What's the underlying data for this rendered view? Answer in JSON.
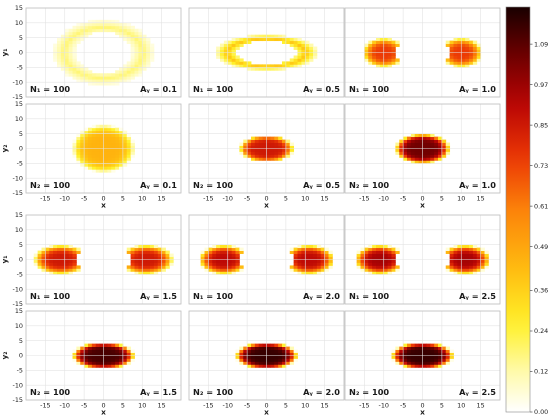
{
  "chart_data": {
    "type": "heatmap",
    "layout": {
      "rows": 4,
      "cols": 3
    },
    "xlabel": "x",
    "ylabels": [
      "y₁",
      "y₂",
      "y₁",
      "y₂"
    ],
    "xlim": [
      -20,
      20
    ],
    "ylim": [
      -15,
      15
    ],
    "x_ticks": [
      -15,
      -10,
      -5,
      0,
      5,
      10,
      15
    ],
    "y_ticks": [
      -15,
      -10,
      -5,
      0,
      5,
      10,
      15
    ],
    "grid": true,
    "colormap": "hot_r",
    "colorbar": {
      "range": [
        0.0,
        1.2
      ],
      "ticks": [
        "0.00",
        "0.12",
        "0.24",
        "0.36",
        "0.49",
        "0.61",
        "0.73",
        "0.85",
        "0.97",
        "1.09"
      ]
    },
    "panels": [
      {
        "row": 0,
        "col": 0,
        "N": "N₁ = 100",
        "A": "Aᵧ = 0.1",
        "shape": "ring",
        "cx": 0,
        "cy": 0,
        "rx": 13,
        "ry": 11,
        "width": 4.5,
        "peak": 0.18,
        "hole_rx": 7,
        "hole_ry": 7
      },
      {
        "row": 0,
        "col": 1,
        "N": "N₁ = 100",
        "A": "Aᵧ = 0.5",
        "shape": "ring",
        "cx": 0,
        "cy": 0,
        "rx": 13,
        "ry": 6,
        "width": 4.5,
        "peak": 0.4,
        "hole_rx": 8,
        "hole_ry": 4
      },
      {
        "row": 0,
        "col": 2,
        "N": "N₁ = 100",
        "A": "Aᵧ = 1.0",
        "shape": "lobes",
        "sep": 10,
        "rx": 5.5,
        "ry": 5,
        "peak": 0.75,
        "hole": 7
      },
      {
        "row": 1,
        "col": 0,
        "N": "N₂ = 100",
        "A": "Aᵧ = 0.1",
        "shape": "blob",
        "cx": 0,
        "cy": 0,
        "rx": 8,
        "ry": 8,
        "peak": 0.45
      },
      {
        "row": 1,
        "col": 1,
        "N": "N₂ = 100",
        "A": "Aᵧ = 0.5",
        "shape": "blob",
        "cx": 0,
        "cy": 0,
        "rx": 7,
        "ry": 4.5,
        "peak": 0.85
      },
      {
        "row": 1,
        "col": 2,
        "N": "N₂ = 100",
        "A": "Aᵧ = 1.0",
        "shape": "blob",
        "cx": 0,
        "cy": 0,
        "rx": 7,
        "ry": 5,
        "peak": 1.05
      },
      {
        "row": 2,
        "col": 0,
        "N": "N₁ = 100",
        "A": "Aᵧ = 1.5",
        "shape": "lobes",
        "sep": 11,
        "rx": 7,
        "ry": 5,
        "peak": 0.85,
        "hole": 7
      },
      {
        "row": 2,
        "col": 1,
        "N": "N₁ = 100",
        "A": "Aᵧ = 2.0",
        "shape": "lobes",
        "sep": 11,
        "rx": 6.5,
        "ry": 5,
        "peak": 0.9,
        "hole": 7
      },
      {
        "row": 2,
        "col": 2,
        "N": "N₁ = 100",
        "A": "Aᵧ = 2.5",
        "shape": "lobes",
        "sep": 11,
        "rx": 6.5,
        "ry": 5,
        "peak": 0.95,
        "hole": 7
      },
      {
        "row": 3,
        "col": 0,
        "N": "N₂ = 100",
        "A": "Aᵧ = 1.5",
        "shape": "blob",
        "cx": 0,
        "cy": 0,
        "rx": 8,
        "ry": 4.5,
        "peak": 1.12
      },
      {
        "row": 3,
        "col": 1,
        "N": "N₂ = 100",
        "A": "Aᵧ = 2.0",
        "shape": "blob",
        "cx": 0,
        "cy": 0,
        "rx": 8,
        "ry": 4.5,
        "peak": 1.15
      },
      {
        "row": 3,
        "col": 2,
        "N": "N₂ = 100",
        "A": "Aᵧ = 2.5",
        "shape": "blob",
        "cx": 0,
        "cy": 0,
        "rx": 8,
        "ry": 4.5,
        "peak": 1.15
      }
    ]
  }
}
